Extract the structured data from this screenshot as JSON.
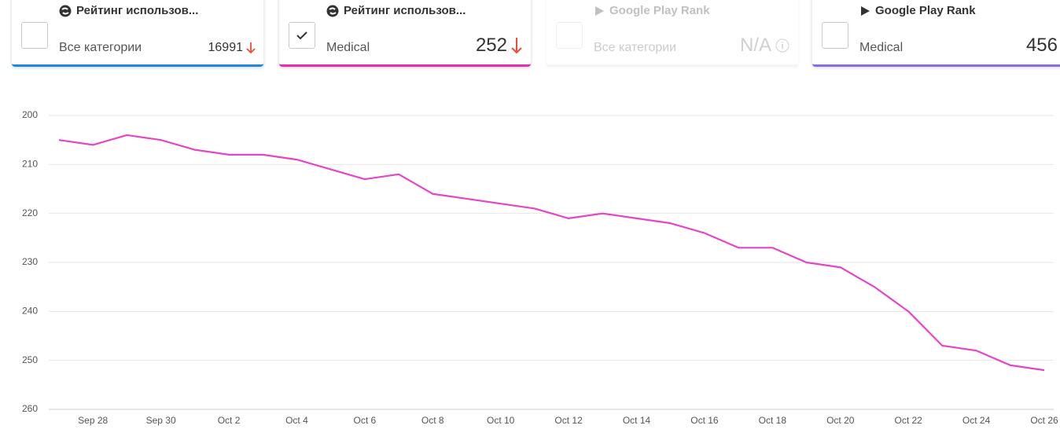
{
  "cards": [
    {
      "title": "Рейтинг использов...",
      "subtitle": "Все категории",
      "value": 16991
    },
    {
      "title": "Рейтинг использов...",
      "subtitle": "Medical",
      "value": 252
    },
    {
      "title": "Google Play Rank",
      "subtitle": "Все категории",
      "value": "N/A"
    },
    {
      "title": "Google Play Rank",
      "subtitle": "Medical",
      "value": 456
    }
  ],
  "chart_data": {
    "type": "line",
    "y_inverted": true,
    "grid": true,
    "categories": [
      null,
      "Sep 28",
      null,
      "Sep 30",
      null,
      "Oct 2",
      null,
      "Oct 4",
      null,
      "Oct 6",
      null,
      "Oct 8",
      null,
      "Oct 10",
      null,
      "Oct 12",
      null,
      "Oct 14",
      null,
      "Oct 16",
      null,
      "Oct 18",
      null,
      "Oct 20",
      null,
      "Oct 22",
      null,
      "Oct 24",
      null,
      "Oct 26"
    ],
    "series": [
      {
        "name": "Medical",
        "color": "#e445c9",
        "values": [
          205,
          206,
          204,
          205,
          207,
          208,
          208,
          209,
          211,
          213,
          212,
          216,
          217,
          218,
          219,
          221,
          220,
          221,
          222,
          224,
          227,
          227,
          230,
          231,
          235,
          240,
          247,
          248,
          251,
          252
        ]
      }
    ],
    "ylim": [
      200,
      260
    ],
    "yticks": [
      200,
      210,
      220,
      230,
      240,
      250,
      260
    ]
  }
}
